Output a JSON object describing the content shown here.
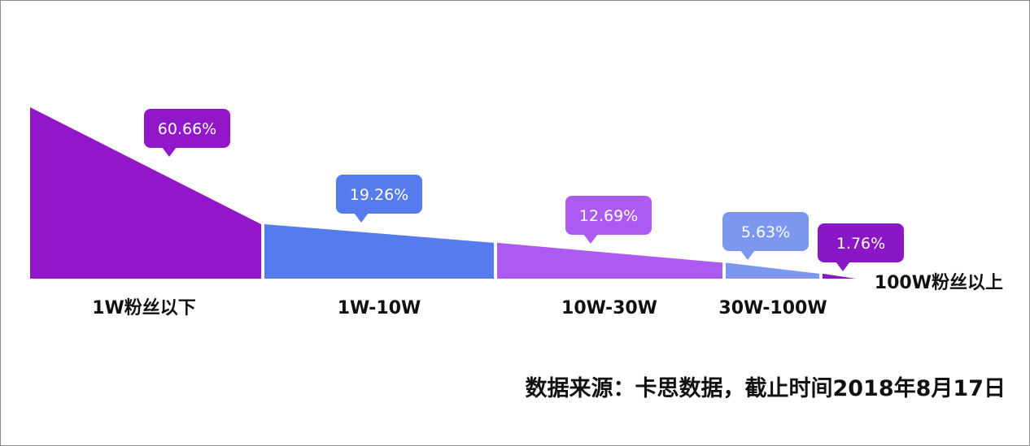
{
  "chart_data": {
    "type": "area",
    "categories": [
      "1W粉丝以下",
      "1W-10W",
      "10W-30W",
      "30W-100W",
      "100W粉丝以上"
    ],
    "values": [
      60.66,
      19.26,
      12.69,
      5.63,
      1.76
    ],
    "value_labels": [
      "60.66%",
      "19.26%",
      "12.69%",
      "5.63%",
      "1.76%"
    ],
    "unit": "%",
    "colors": [
      "#9217c8",
      "#557bec",
      "#ad5af0",
      "#7b98ee",
      "#8a17c6"
    ],
    "legend": "none",
    "grid": false
  },
  "source_note": "数据来源：卡思数据，截止时间2018年8月17日"
}
